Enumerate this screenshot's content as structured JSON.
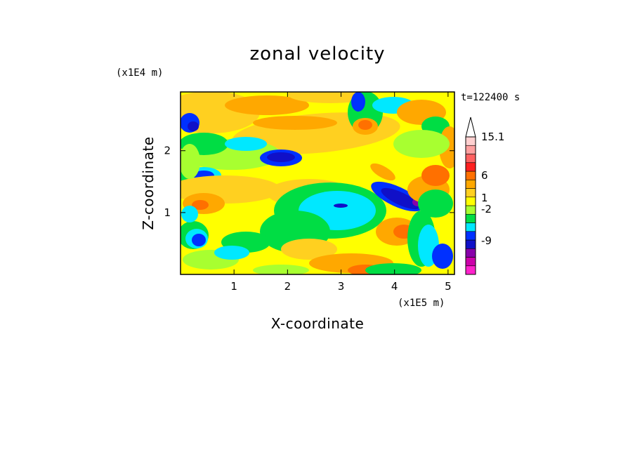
{
  "chart_data": {
    "type": "heatmap",
    "title": "zonal velocity",
    "xlabel": "X-coordinate",
    "ylabel": "Z-coordinate",
    "x_unit": "(x1E5 m)",
    "y_unit": "(x1E4 m)",
    "time_label": "t=122400 s",
    "xlim": [
      0,
      5.12
    ],
    "ylim": [
      0,
      2.95
    ],
    "x_ticks": [
      "1",
      "2",
      "3",
      "4",
      "5"
    ],
    "x_tick_values": [
      1,
      2,
      3,
      4,
      5
    ],
    "y_ticks": [
      "1",
      "2"
    ],
    "y_tick_values": [
      1,
      2
    ],
    "colorbar": {
      "labels": [
        "15.1",
        "6",
        "1",
        "-2",
        "-9"
      ],
      "label_values": [
        15.1,
        6,
        1,
        -2,
        -9
      ],
      "colors": [
        "#ff22cc",
        "#cc00aa",
        "#8800aa",
        "#1010c8",
        "#0030ff",
        "#00e8ff",
        "#00dd44",
        "#a8ff30",
        "#ffff00",
        "#ffd020",
        "#ffa800",
        "#ff7000",
        "#ff2020",
        "#ff6060",
        "#ffa0a0",
        "#ffd0d0"
      ],
      "extend": "max"
    },
    "field_description": "contour field of zonal velocity"
  }
}
